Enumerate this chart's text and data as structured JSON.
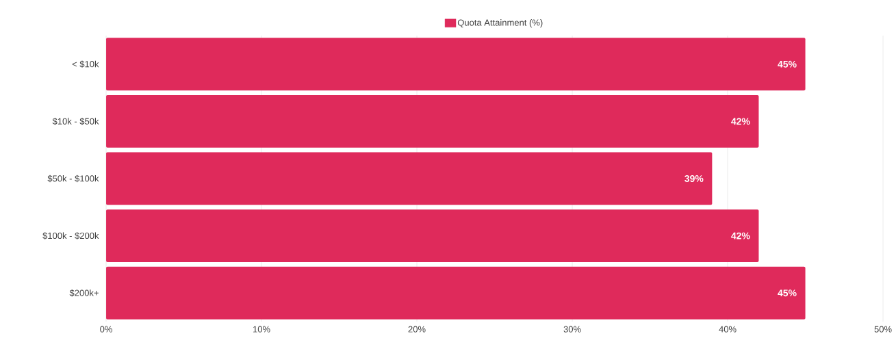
{
  "chart_data": {
    "type": "bar",
    "orientation": "horizontal",
    "categories": [
      "< $10k",
      "$10k - $50k",
      "$50k - $100k",
      "$100k - $200k",
      "$200k+"
    ],
    "series": [
      {
        "name": "Quota Attainment (%)",
        "color": "#df2a5b",
        "values": [
          45,
          42,
          39,
          42,
          45
        ],
        "value_labels": [
          "45%",
          "42%",
          "39%",
          "42%",
          "45%"
        ]
      }
    ],
    "xlim": [
      0,
      50
    ],
    "xticks": [
      {
        "value": 0,
        "label": "0%"
      },
      {
        "value": 10,
        "label": "10%"
      },
      {
        "value": 20,
        "label": "20%"
      },
      {
        "value": 30,
        "label": "30%"
      },
      {
        "value": 40,
        "label": "40%"
      },
      {
        "value": 50,
        "label": "50%"
      }
    ],
    "grid": "x",
    "legend": "top"
  }
}
